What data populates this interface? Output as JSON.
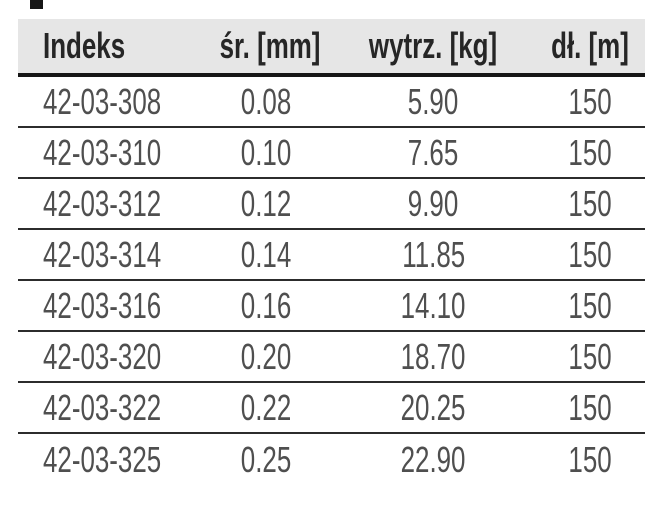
{
  "table": {
    "columns": [
      {
        "id": "indeks",
        "label": "Indeks"
      },
      {
        "id": "srednica",
        "label": "śr. [mm]"
      },
      {
        "id": "wytrzymalosc",
        "label": "wytrz. [kg]"
      },
      {
        "id": "dlugosc",
        "label": "dł. [m]"
      }
    ],
    "rows": [
      {
        "indeks": "42-03-308",
        "srednica": "0.08",
        "wytrzymalosc": "5.90",
        "dlugosc": "150"
      },
      {
        "indeks": "42-03-310",
        "srednica": "0.10",
        "wytrzymalosc": "7.65",
        "dlugosc": "150"
      },
      {
        "indeks": "42-03-312",
        "srednica": "0.12",
        "wytrzymalosc": "9.90",
        "dlugosc": "150"
      },
      {
        "indeks": "42-03-314",
        "srednica": "0.14",
        "wytrzymalosc": "11.85",
        "dlugosc": "150"
      },
      {
        "indeks": "42-03-316",
        "srednica": "0.16",
        "wytrzymalosc": "14.10",
        "dlugosc": "150"
      },
      {
        "indeks": "42-03-320",
        "srednica": "0.20",
        "wytrzymalosc": "18.70",
        "dlugosc": "150"
      },
      {
        "indeks": "42-03-322",
        "srednica": "0.22",
        "wytrzymalosc": "20.25",
        "dlugosc": "150"
      },
      {
        "indeks": "42-03-325",
        "srednica": "0.25",
        "wytrzymalosc": "22.90",
        "dlugosc": "150"
      }
    ]
  },
  "colors": {
    "header_background": "#e6e6e6",
    "header_text": "#262626",
    "body_text": "#4f4f4f",
    "header_rule": "#161616",
    "row_rule": "#2c2c2c",
    "page_background": "#ffffff"
  }
}
